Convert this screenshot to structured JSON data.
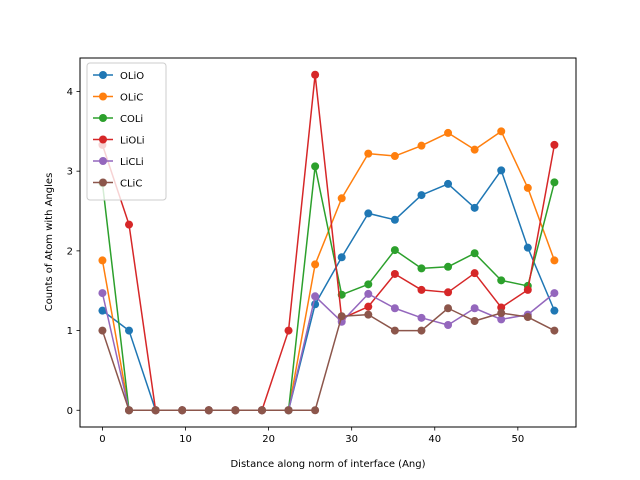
{
  "chart_data": {
    "type": "line",
    "title": "",
    "xlabel": "Distance along norm of interface (Ang)",
    "ylabel": "Counts of Atom with Angles",
    "xlim": [
      -2.7,
      57.0
    ],
    "ylim": [
      -0.21,
      4.42
    ],
    "xticks": [
      0,
      10,
      20,
      30,
      40,
      50
    ],
    "yticks": [
      0,
      1,
      2,
      3,
      4
    ],
    "grid": false,
    "legend_position": "upper-left",
    "x": [
      0,
      3.2,
      6.4,
      9.6,
      12.8,
      16.0,
      19.2,
      22.4,
      25.6,
      28.8,
      32.0,
      35.2,
      38.4,
      41.6,
      44.8,
      48.0,
      51.2,
      54.4
    ],
    "series": [
      {
        "name": "OLiO",
        "color": "#1f77b4",
        "values": [
          1.25,
          1.0,
          0,
          0,
          0,
          0,
          0,
          0,
          1.33,
          1.92,
          2.47,
          2.39,
          2.7,
          2.84,
          2.54,
          3.01,
          2.04,
          1.25
        ]
      },
      {
        "name": "OLiC",
        "color": "#ff7f0e",
        "values": [
          1.88,
          0,
          0,
          0,
          0,
          0,
          0,
          0,
          1.83,
          2.66,
          3.22,
          3.19,
          3.32,
          3.48,
          3.27,
          3.5,
          2.79,
          1.88
        ]
      },
      {
        "name": "COLi",
        "color": "#2ca02c",
        "values": [
          2.85,
          0,
          0,
          0,
          0,
          0,
          0,
          0,
          3.06,
          1.45,
          1.58,
          2.01,
          1.78,
          1.8,
          1.97,
          1.63,
          1.56,
          2.86
        ]
      },
      {
        "name": "LiOLi",
        "color": "#d62728",
        "values": [
          3.33,
          2.33,
          0,
          0,
          0,
          0,
          0,
          1.0,
          4.21,
          1.15,
          1.3,
          1.71,
          1.51,
          1.48,
          1.72,
          1.29,
          1.51,
          3.33
        ]
      },
      {
        "name": "LiCLi",
        "color": "#9467bd",
        "values": [
          1.47,
          0,
          0,
          0,
          0,
          0,
          0,
          0,
          1.43,
          1.11,
          1.46,
          1.28,
          1.16,
          1.07,
          1.28,
          1.14,
          1.2,
          1.47
        ]
      },
      {
        "name": "CLiC",
        "color": "#8c564b",
        "values": [
          1.0,
          0,
          0,
          0,
          0,
          0,
          0,
          0,
          0,
          1.18,
          1.2,
          1.0,
          1.0,
          1.28,
          1.12,
          1.22,
          1.17,
          1.0
        ]
      }
    ]
  }
}
